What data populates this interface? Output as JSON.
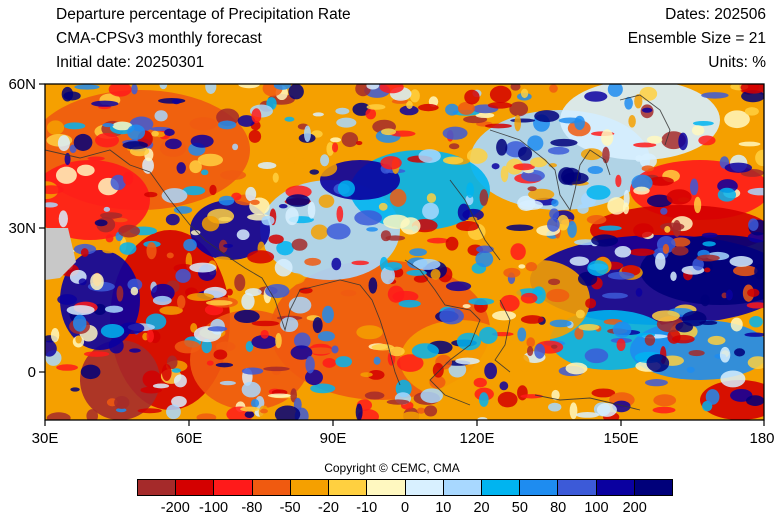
{
  "header": {
    "title": "Departure percentage of Precipitation Rate",
    "model": "CMA-CPSv3 monthly forecast",
    "init_date": "Initial date: 20250301",
    "dates": "Dates: 202506",
    "ensemble": "Ensemble Size = 21",
    "units": "Units: %"
  },
  "map": {
    "lat_labels": [
      "60N",
      "30N",
      "0"
    ],
    "lon_labels": [
      "30E",
      "60E",
      "90E",
      "120E",
      "150E",
      "180"
    ],
    "extent": {
      "lon": [
        30,
        180
      ],
      "lat": [
        -10,
        60
      ]
    },
    "missing_color": "#c8c8c8"
  },
  "colorbar": {
    "labels": [
      "-200",
      "-100",
      "-80",
      "-50",
      "-20",
      "-10",
      "0",
      "10",
      "20",
      "50",
      "80",
      "100",
      "200"
    ],
    "colors": [
      "#a52a2a",
      "#d40000",
      "#ff1a1a",
      "#f05a10",
      "#f5a000",
      "#ffd040",
      "#fff8c0",
      "#d8f0ff",
      "#a8d8ff",
      "#00b4f0",
      "#1e8cf0",
      "#3c5ad8",
      "#0a00a0",
      "#00007a"
    ]
  },
  "copyright": "Copyright © CEMC, CMA"
}
